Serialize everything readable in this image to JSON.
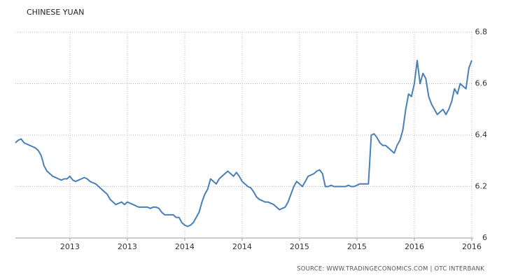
{
  "chart_data": {
    "type": "line",
    "title": "CHINESE YUAN",
    "source": "SOURCE: WWW.TRADINGECONOMICS.COM | OTC INTERBANK",
    "categories": [
      null,
      null,
      null,
      null,
      null,
      null,
      null,
      null,
      null,
      null,
      null,
      null,
      null,
      null,
      null,
      null,
      null,
      null,
      null,
      "2013",
      null,
      null,
      null,
      null,
      null,
      null,
      null,
      null,
      null,
      null,
      null,
      null,
      null,
      null,
      null,
      null,
      null,
      null,
      null,
      "2013",
      null,
      null,
      null,
      null,
      null,
      null,
      null,
      null,
      null,
      null,
      null,
      null,
      null,
      null,
      null,
      null,
      null,
      null,
      null,
      "2014",
      null,
      null,
      null,
      null,
      null,
      null,
      null,
      null,
      null,
      null,
      null,
      null,
      null,
      null,
      null,
      null,
      null,
      null,
      null,
      "2014",
      null,
      null,
      null,
      null,
      null,
      null,
      null,
      null,
      null,
      null,
      null,
      null,
      null,
      null,
      null,
      null,
      null,
      null,
      null,
      "2015",
      null,
      null,
      null,
      null,
      null,
      null,
      null,
      null,
      null,
      null,
      null,
      null,
      null,
      null,
      null,
      null,
      null,
      null,
      null,
      "2015",
      null,
      null,
      null,
      null,
      null,
      null,
      null,
      null,
      null,
      null,
      null,
      null,
      null,
      null,
      null,
      null,
      null,
      null,
      null,
      "2016",
      null,
      null,
      null,
      null,
      null,
      null,
      null,
      null,
      null,
      null,
      null,
      null,
      null,
      null,
      null,
      null,
      null,
      null,
      null,
      "2016"
    ],
    "values": [
      6.37,
      6.38,
      6.385,
      6.37,
      6.365,
      6.36,
      6.355,
      6.35,
      6.34,
      6.32,
      6.28,
      6.26,
      6.25,
      6.24,
      6.235,
      6.23,
      6.225,
      6.23,
      6.23,
      6.24,
      6.225,
      6.22,
      6.225,
      6.23,
      6.235,
      6.23,
      6.22,
      6.215,
      6.21,
      6.2,
      6.19,
      6.18,
      6.17,
      6.15,
      6.14,
      6.13,
      6.135,
      6.14,
      6.13,
      6.14,
      6.135,
      6.13,
      6.125,
      6.12,
      6.12,
      6.12,
      6.12,
      6.115,
      6.12,
      6.12,
      6.115,
      6.1,
      6.09,
      6.09,
      6.09,
      6.09,
      6.08,
      6.08,
      6.06,
      6.05,
      6.045,
      6.05,
      6.06,
      6.08,
      6.1,
      6.14,
      6.17,
      6.19,
      6.23,
      6.22,
      6.21,
      6.23,
      6.24,
      6.25,
      6.26,
      6.25,
      6.24,
      6.255,
      6.24,
      6.22,
      6.21,
      6.2,
      6.195,
      6.18,
      6.16,
      6.15,
      6.145,
      6.14,
      6.14,
      6.135,
      6.13,
      6.12,
      6.11,
      6.115,
      6.12,
      6.14,
      6.17,
      6.2,
      6.22,
      6.21,
      6.2,
      6.22,
      6.24,
      6.245,
      6.25,
      6.26,
      6.265,
      6.25,
      6.2,
      6.2,
      6.205,
      6.2,
      6.2,
      6.2,
      6.2,
      6.2,
      6.205,
      6.2,
      6.2,
      6.205,
      6.21,
      6.21,
      6.21,
      6.21,
      6.4,
      6.405,
      6.39,
      6.37,
      6.36,
      6.36,
      6.35,
      6.34,
      6.33,
      6.36,
      6.38,
      6.42,
      6.5,
      6.56,
      6.55,
      6.6,
      6.69,
      6.6,
      6.64,
      6.62,
      6.55,
      6.52,
      6.5,
      6.48,
      6.49,
      6.5,
      6.48,
      6.5,
      6.53,
      6.58,
      6.56,
      6.6,
      6.59,
      6.58,
      6.66,
      6.69
    ],
    "color": "#4a7fb5",
    "ylim": [
      6,
      6.8
    ],
    "yticks": [
      6,
      6.2,
      6.4,
      6.6,
      6.8
    ],
    "grid": true
  }
}
